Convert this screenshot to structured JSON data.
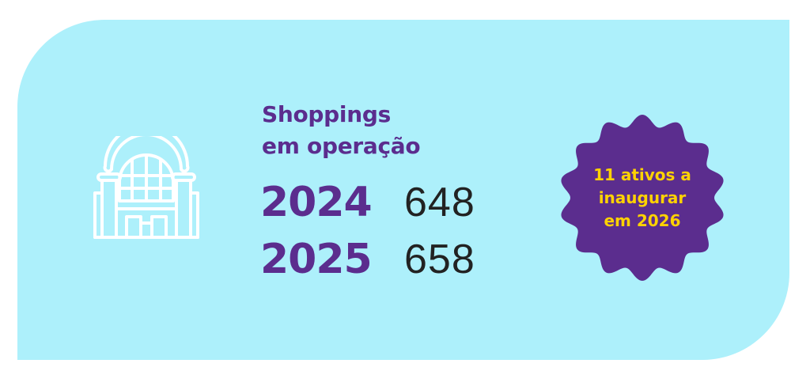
{
  "colors": {
    "background": "#adf0fb",
    "primary": "#5b2d8e",
    "accent": "#ffd200",
    "number": "#222222"
  },
  "icon": "shopping-mall-building-icon",
  "title": {
    "line1": "Shoppings",
    "line2": "em operação"
  },
  "stats": [
    {
      "year": "2024",
      "value": "648"
    },
    {
      "year": "2025",
      "value": "658"
    }
  ],
  "badge": {
    "line1": "11 ativos a",
    "line2": "inaugurar",
    "line3": "em 2026"
  }
}
